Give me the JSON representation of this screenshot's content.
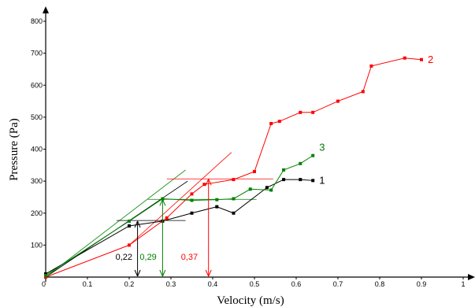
{
  "chart_data": {
    "type": "line",
    "xlabel": "Velocity (m/s)",
    "ylabel": "Pressure (Pa)",
    "xlim": [
      0,
      1
    ],
    "ylim": [
      0,
      800
    ],
    "x_ticks": [
      0,
      0.1,
      0.2,
      0.3,
      0.4,
      0.5,
      0.6,
      0.7,
      0.8,
      0.9,
      1
    ],
    "x_tick_labels": [
      "0",
      "0.1",
      "0.2",
      "0.3",
      "0.4",
      "0.5",
      "0.6",
      "0.7",
      "0.8",
      "0.9",
      "1"
    ],
    "y_ticks": [
      100,
      200,
      300,
      400,
      500,
      600,
      700,
      800
    ],
    "y_tick_labels": [
      "100",
      "200",
      "300",
      "400",
      "500",
      "600",
      "700",
      "800"
    ],
    "origin_label": "0",
    "grid": false,
    "series": [
      {
        "name": "1",
        "color": "#000000",
        "x": [
          0,
          0.2,
          0.28,
          0.35,
          0.41,
          0.45,
          0.53,
          0.57,
          0.61,
          0.64
        ],
        "y": [
          10,
          160,
          175,
          200,
          220,
          200,
          280,
          305,
          305,
          302
        ]
      },
      {
        "name": "2",
        "color": "#ff0000",
        "x": [
          0,
          0.2,
          0.29,
          0.35,
          0.38,
          0.45,
          0.5,
          0.54,
          0.56,
          0.61,
          0.64,
          0.7,
          0.76,
          0.78,
          0.86,
          0.9
        ],
        "y": [
          0,
          100,
          185,
          260,
          290,
          305,
          330,
          480,
          487,
          515,
          515,
          550,
          580,
          660,
          685,
          680
        ]
      },
      {
        "name": "3",
        "color": "#008000",
        "x": [
          0,
          0.2,
          0.28,
          0.35,
          0.41,
          0.45,
          0.49,
          0.54,
          0.57,
          0.61,
          0.64
        ],
        "y": [
          5,
          175,
          245,
          240,
          242,
          245,
          275,
          272,
          335,
          355,
          380
        ]
      }
    ],
    "annotations": [
      {
        "text": "0,22",
        "color": "#000000",
        "x_value": 0.22,
        "y_value": 175
      },
      {
        "text": "0,29",
        "color": "#008000",
        "x_value": 0.28,
        "y_value": 243
      },
      {
        "text": "0,37",
        "color": "#ff0000",
        "x_value": 0.39,
        "y_value": 307
      }
    ]
  }
}
